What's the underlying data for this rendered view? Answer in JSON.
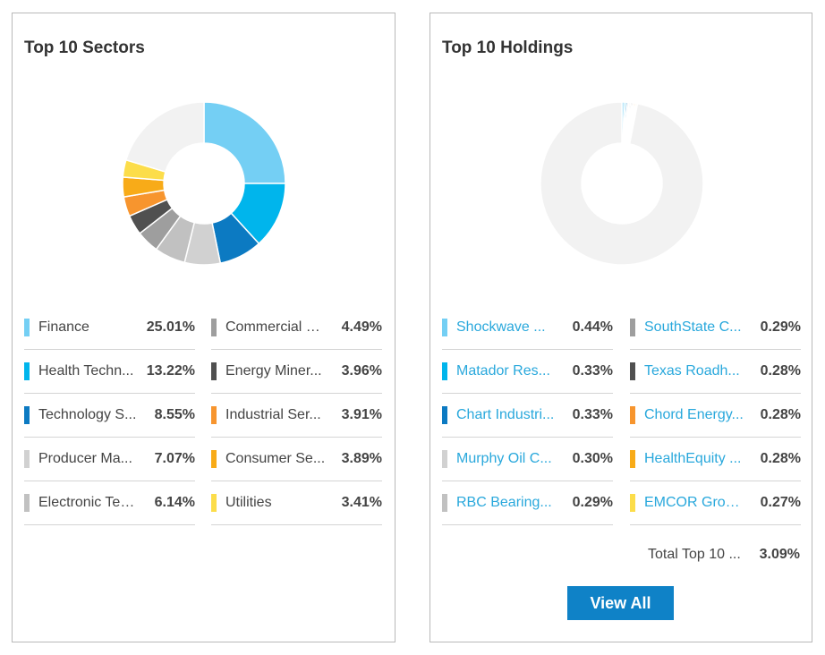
{
  "colors": {
    "palette": [
      "#74cff4",
      "#00b5ec",
      "#0c7ac2",
      "#d1d1d1",
      "#c1c1c1",
      "#9e9e9e",
      "#505050",
      "#f7952e",
      "#f8ab18",
      "#fcdd4a"
    ],
    "donut_remainder": "#f2f2f2",
    "link": "#29a8dc",
    "button": "#0f82c7"
  },
  "sectors": {
    "title": "Top 10 Sectors",
    "left": [
      {
        "label": "Finance",
        "value": "25.01%"
      },
      {
        "label": "Health Techn...",
        "value": "13.22%"
      },
      {
        "label": "Technology S...",
        "value": "8.55%"
      },
      {
        "label": "Producer Ma...",
        "value": "7.07%"
      },
      {
        "label": "Electronic Tec...",
        "value": "6.14%"
      }
    ],
    "right": [
      {
        "label": "Commercial S...",
        "value": "4.49%"
      },
      {
        "label": "Energy Miner...",
        "value": "3.96%"
      },
      {
        "label": "Industrial Ser...",
        "value": "3.91%"
      },
      {
        "label": "Consumer Se...",
        "value": "3.89%"
      },
      {
        "label": "Utilities",
        "value": "3.41%"
      }
    ]
  },
  "holdings": {
    "title": "Top 10 Holdings",
    "left": [
      {
        "label": "Shockwave ...",
        "value": "0.44%"
      },
      {
        "label": "Matador Res...",
        "value": "0.33%"
      },
      {
        "label": "Chart Industri...",
        "value": "0.33%"
      },
      {
        "label": "Murphy Oil C...",
        "value": "0.30%"
      },
      {
        "label": "RBC Bearing...",
        "value": "0.29%"
      }
    ],
    "right": [
      {
        "label": "SouthState C...",
        "value": "0.29%"
      },
      {
        "label": "Texas Roadh...",
        "value": "0.28%"
      },
      {
        "label": "Chord Energy...",
        "value": "0.28%"
      },
      {
        "label": "HealthEquity ...",
        "value": "0.28%"
      },
      {
        "label": "EMCOR Grou...",
        "value": "0.27%"
      }
    ],
    "total_label": "Total Top 10 ...",
    "total_value": "3.09%",
    "view_all_label": "View All"
  },
  "chart_data": [
    {
      "type": "pie",
      "title": "Top 10 Sectors",
      "categories": [
        "Finance",
        "Health Techn...",
        "Technology S...",
        "Producer Ma...",
        "Electronic Tec...",
        "Commercial S...",
        "Energy Miner...",
        "Industrial Ser...",
        "Consumer Se...",
        "Utilities"
      ],
      "values": [
        25.01,
        13.22,
        8.55,
        7.07,
        6.14,
        4.49,
        3.96,
        3.91,
        3.89,
        3.41
      ],
      "unit": "%",
      "donut": true
    },
    {
      "type": "pie",
      "title": "Top 10 Holdings",
      "categories": [
        "Shockwave ...",
        "Matador Res...",
        "Chart Industri...",
        "Murphy Oil C...",
        "RBC Bearing...",
        "SouthState C...",
        "Texas Roadh...",
        "Chord Energy...",
        "HealthEquity ...",
        "EMCOR Grou..."
      ],
      "values": [
        0.44,
        0.33,
        0.33,
        0.3,
        0.29,
        0.29,
        0.28,
        0.28,
        0.28,
        0.27
      ],
      "unit": "%",
      "donut": true
    }
  ]
}
